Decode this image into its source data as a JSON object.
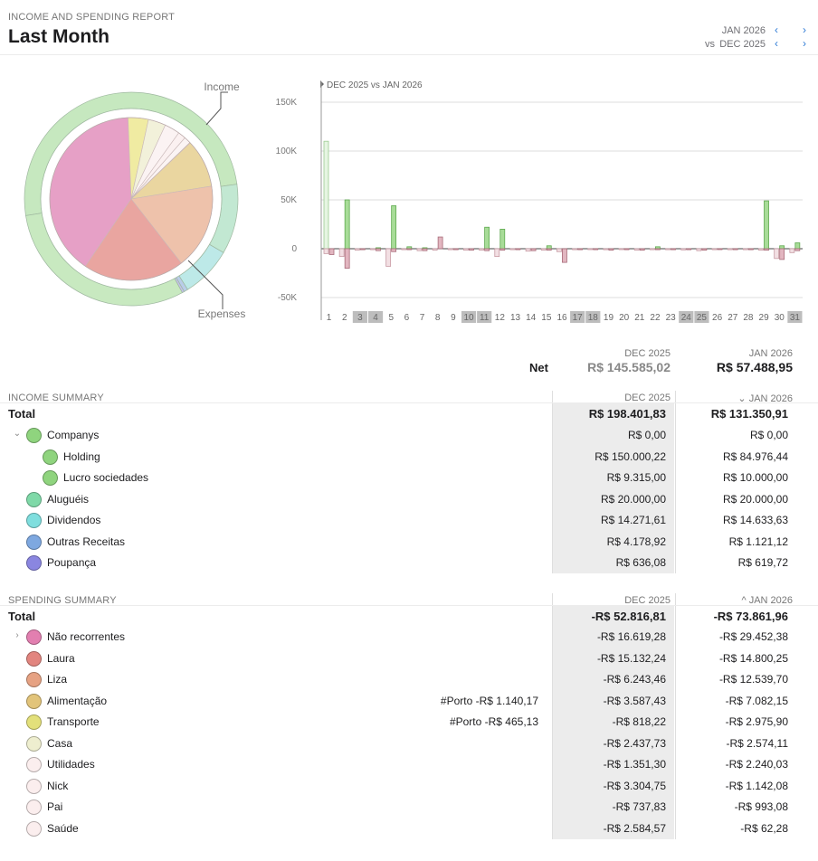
{
  "header": {
    "report_label": "INCOME AND SPENDING REPORT",
    "title": "Last Month",
    "current_period": "JAN 2026",
    "vs_label": "vs",
    "compare_period": "DEC 2025"
  },
  "donut": {
    "income_label": "Income",
    "expenses_label": "Expenses",
    "outer_ring": [
      {
        "name": "Companys",
        "value": 94976.44,
        "color": "#c6e8bf"
      },
      {
        "name": "Aluguéis",
        "value": 20000.0,
        "color": "#c2e8d2"
      },
      {
        "name": "Dividendos",
        "value": 14633.63,
        "color": "#bde9e8"
      },
      {
        "name": "Outras Receitas",
        "value": 1121.12,
        "color": "#b9cde9"
      },
      {
        "name": "Poupança",
        "value": 619.72,
        "color": "#c3c0ea"
      },
      {
        "name": "Net",
        "value": 57488.95,
        "color": "#c8e9c0"
      }
    ],
    "inner_pie": [
      {
        "name": "Não recorrentes",
        "value": 29452.38,
        "color": "#e6a0c6"
      },
      {
        "name": "Transporte",
        "value": 2975.9,
        "color": "#f0eba2"
      },
      {
        "name": "Casa",
        "value": 2574.11,
        "color": "#f2f1da"
      },
      {
        "name": "Utilidades",
        "value": 2240.03,
        "color": "#fbf3f3"
      },
      {
        "name": "Nick",
        "value": 1142.08,
        "color": "#fbf1f1"
      },
      {
        "name": "Pai",
        "value": 993.08,
        "color": "#fbf4f4"
      },
      {
        "name": "Saúde",
        "value": 62.28,
        "color": "#fdf6f6"
      },
      {
        "name": "Alimentação",
        "value": 7082.15,
        "color": "#ead6a0"
      },
      {
        "name": "Liza",
        "value": 12539.7,
        "color": "#eec2ab"
      },
      {
        "name": "Laura",
        "value": 14800.25,
        "color": "#e9a5a0"
      }
    ]
  },
  "chart_data": {
    "type": "bar",
    "title": "DEC 2025 vs JAN 2026",
    "categories": [
      "1",
      "2",
      "3",
      "4",
      "5",
      "6",
      "7",
      "8",
      "9",
      "10",
      "11",
      "12",
      "13",
      "14",
      "15",
      "16",
      "17",
      "18",
      "19",
      "20",
      "21",
      "22",
      "23",
      "24",
      "25",
      "26",
      "27",
      "28",
      "29",
      "30",
      "31"
    ],
    "weekend_days": [
      "3",
      "4",
      "10",
      "11",
      "17",
      "18",
      "24",
      "25",
      "31"
    ],
    "yticks": [
      "150K",
      "100K",
      "50K",
      "0",
      "-50K"
    ],
    "ylim": [
      -55000,
      150000
    ],
    "series": [
      {
        "name": "DEC 2025 Income",
        "values": [
          110000,
          0,
          0,
          0,
          0,
          0,
          0,
          0,
          0,
          0,
          0,
          0,
          0,
          0,
          0,
          0,
          0,
          0,
          0,
          0,
          0,
          0,
          0,
          0,
          0,
          0,
          0,
          0,
          0,
          0,
          0
        ]
      },
      {
        "name": "DEC 2025 Spending",
        "values": [
          -5000,
          -8000,
          -1500,
          -1000,
          -18000,
          -1000,
          -2000,
          -1500,
          -1000,
          -1500,
          -1500,
          -8000,
          -1000,
          -2500,
          -1500,
          -3000,
          -1000,
          -800,
          -1000,
          -800,
          -1500,
          -1000,
          -1000,
          -1200,
          -2000,
          -1000,
          -1000,
          -1000,
          -1500,
          -10000,
          -4000
        ]
      },
      {
        "name": "JAN 2026 Income",
        "values": [
          0,
          50000,
          0,
          1000,
          44000,
          2000,
          1000,
          0,
          0,
          0,
          22000,
          20000,
          0,
          0,
          3000,
          0,
          0,
          0,
          0,
          0,
          0,
          2000,
          0,
          0,
          0,
          0,
          0,
          0,
          49000,
          3000,
          6000
        ]
      },
      {
        "name": "JAN 2026 Spending",
        "values": [
          -6000,
          -20000,
          -1000,
          -2000,
          -3000,
          -1000,
          -2000,
          12000,
          -1000,
          -1500,
          -2000,
          -1500,
          -1000,
          -2000,
          -1500,
          -14000,
          -1000,
          -1000,
          -1500,
          -1000,
          -1500,
          -1000,
          -1000,
          -1000,
          -1500,
          -800,
          -1000,
          -1000,
          -1500,
          -11000,
          -2000
        ]
      }
    ]
  },
  "net": {
    "label": "Net",
    "col1_header": "DEC 2025",
    "col2_header": "JAN 2026",
    "col1_value": "R$ 145.585,02",
    "col2_value": "R$ 57.488,95"
  },
  "income": {
    "section_label": "INCOME SUMMARY",
    "col1_header": "DEC 2025",
    "col2_header": "JAN 2026",
    "sort_indicator": "⌄",
    "total_label": "Total",
    "total_v1": "R$ 198.401,83",
    "total_v2": "R$ 131.350,91",
    "rows": [
      {
        "label": "Companys",
        "v1": "R$ 0,00",
        "v2": "R$ 0,00",
        "color": "#8fd47e",
        "indent": 0,
        "disclosure": "⌄"
      },
      {
        "label": "Holding",
        "v1": "R$ 150.000,22",
        "v2": "R$ 84.976,44",
        "color": "#8fd47e",
        "indent": 1
      },
      {
        "label": "Lucro sociedades",
        "v1": "R$ 9.315,00",
        "v2": "R$ 10.000,00",
        "color": "#8fd47e",
        "indent": 1
      },
      {
        "label": "Aluguéis",
        "v1": "R$ 20.000,00",
        "v2": "R$ 20.000,00",
        "color": "#7fd9a8",
        "indent": 0
      },
      {
        "label": "Dividendos",
        "v1": "R$ 14.271,61",
        "v2": "R$ 14.633,63",
        "color": "#7fdede",
        "indent": 0
      },
      {
        "label": "Outras Receitas",
        "v1": "R$ 4.178,92",
        "v2": "R$ 1.121,12",
        "color": "#7ea8e0",
        "indent": 0
      },
      {
        "label": "Poupança",
        "v1": "R$ 636,08",
        "v2": "R$ 619,72",
        "color": "#8a86e0",
        "indent": 0
      }
    ]
  },
  "spending": {
    "section_label": "SPENDING SUMMARY",
    "col1_header": "DEC 2025",
    "col2_header": "JAN 2026",
    "sort_indicator": "^",
    "total_label": "Total",
    "total_v1": "-R$ 52.816,81",
    "total_v2": "-R$ 73.861,96",
    "rows": [
      {
        "label": "Não recorrentes",
        "v1": "-R$ 16.619,28",
        "v2": "-R$ 29.452,38",
        "color": "#e27fb0",
        "disclosure": "›"
      },
      {
        "label": "Laura",
        "v1": "-R$ 15.132,24",
        "v2": "-R$ 14.800,25",
        "color": "#e2857f"
      },
      {
        "label": "Liza",
        "v1": "-R$ 6.243,46",
        "v2": "-R$ 12.539,70",
        "color": "#e6a283"
      },
      {
        "label": "Alimentação",
        "v1": "-R$ 3.587,43",
        "v2": "-R$ 7.082,15",
        "color": "#e2c47a",
        "note": "#Porto -R$ 1.140,17"
      },
      {
        "label": "Transporte",
        "v1": "-R$ 818,22",
        "v2": "-R$ 2.975,90",
        "color": "#e3e07a",
        "note": "#Porto -R$ 465,13"
      },
      {
        "label": "Casa",
        "v1": "-R$ 2.437,73",
        "v2": "-R$ 2.574,11",
        "color": "#eeeecf"
      },
      {
        "label": "Utilidades",
        "v1": "-R$ 1.351,30",
        "v2": "-R$ 2.240,03",
        "color": "#fbeeee"
      },
      {
        "label": "Nick",
        "v1": "-R$ 3.304,75",
        "v2": "-R$ 1.142,08",
        "color": "#fbeeee"
      },
      {
        "label": "Pai",
        "v1": "-R$ 737,83",
        "v2": "-R$ 993,08",
        "color": "#fbeeee"
      },
      {
        "label": "Saúde",
        "v1": "-R$ 2.584,57",
        "v2": "-R$ 62,28",
        "color": "#fbeeee"
      }
    ]
  }
}
